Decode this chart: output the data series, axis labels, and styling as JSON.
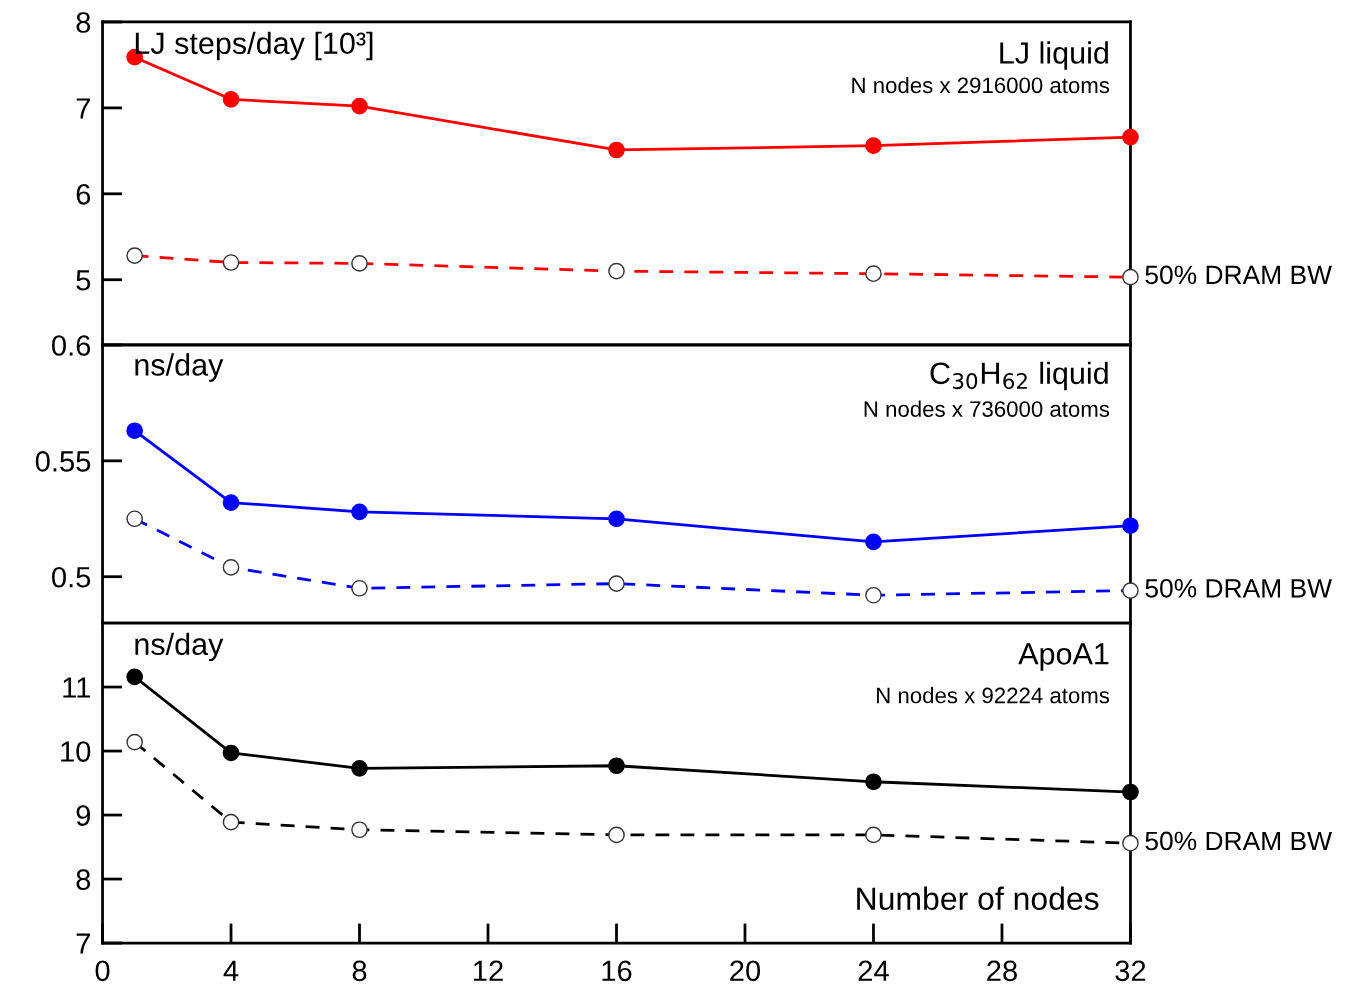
{
  "chart_data": [
    {
      "type": "line",
      "title": "LJ liquid",
      "subtitle": "N nodes x 2916000 atoms",
      "ylabel": "LJ steps/day [10³]",
      "x": [
        1,
        4,
        8,
        16,
        24,
        32
      ],
      "xlim": [
        0,
        32
      ],
      "ylim": [
        4.24,
        8
      ],
      "yticks": [
        5,
        6,
        7,
        8
      ],
      "tick_labels": "y",
      "marker": "circle",
      "grid": false,
      "legend": false,
      "series": [
        {
          "color": "#ff0000",
          "line_style": "solid",
          "values": [
            7.59,
            7.1,
            7.02,
            6.51,
            6.56,
            6.66
          ]
        },
        {
          "name": "50% DRAM BW",
          "color": "#ff0000",
          "line_style": "dashed",
          "values": [
            5.28,
            5.2,
            5.19,
            5.1,
            5.07,
            5.03
          ]
        }
      ]
    },
    {
      "type": "line",
      "title": "C$_{30}$H$_{62}$ liquid",
      "subtitle": "N nodes x 736000 atoms",
      "ylabel": "ns/day",
      "x": [
        1,
        4,
        8,
        16,
        24,
        32
      ],
      "xlim": [
        0,
        32
      ],
      "ylim": [
        0.48,
        0.6
      ],
      "yticks": [
        0.5,
        0.55,
        0.6
      ],
      "tick_labels": "y",
      "marker": "circle",
      "grid": false,
      "legend": false,
      "series": [
        {
          "color": "#0000ff",
          "line_style": "solid",
          "values": [
            0.563,
            0.532,
            0.528,
            0.525,
            0.515,
            0.522
          ]
        },
        {
          "name": "50% DRAM BW",
          "color": "#0000ff",
          "line_style": "dashed",
          "values": [
            0.525,
            0.504,
            0.495,
            0.497,
            0.492,
            0.494
          ]
        }
      ]
    },
    {
      "type": "line",
      "title": "ApoA1",
      "subtitle": "N nodes x 92224 atoms",
      "ylabel": "ns/day",
      "xlabel": "Number of nodes",
      "x": [
        1,
        4,
        8,
        16,
        24,
        32
      ],
      "xlim": [
        0,
        32
      ],
      "xticks": [
        0,
        4,
        8,
        12,
        16,
        20,
        24,
        28,
        32
      ],
      "ylim": [
        7,
        12
      ],
      "yticks": [
        7,
        8,
        9,
        10,
        11
      ],
      "marker": "circle",
      "grid": false,
      "legend": false,
      "series": [
        {
          "color": "#000000",
          "line_style": "solid",
          "values": [
            11.16,
            9.97,
            9.73,
            9.77,
            9.52,
            9.36
          ]
        },
        {
          "name": "50% DRAM BW",
          "color": "#000000",
          "line_style": "dashed",
          "values": [
            10.14,
            8.89,
            8.77,
            8.69,
            8.69,
            8.56
          ]
        }
      ]
    }
  ]
}
